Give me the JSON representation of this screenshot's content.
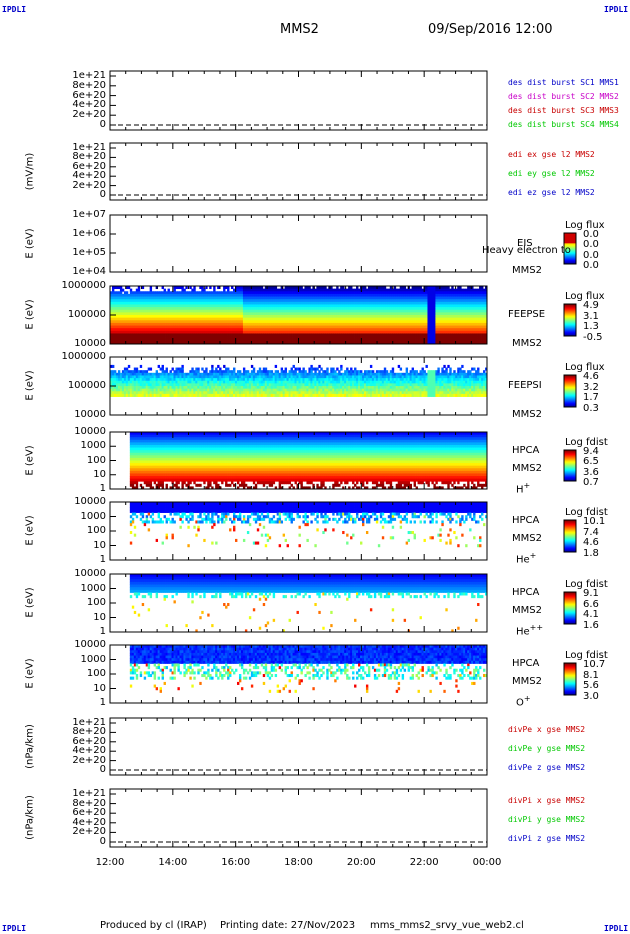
{
  "header": {
    "title": "MMS2",
    "date": "09/Sep/2016 12:00",
    "corner": "IPDLI"
  },
  "footer": {
    "produced": "Produced by cl (IRAP)",
    "printing": "Printing date: 27/Nov/2023",
    "file": "mms_mms2_srvy_vue_web2.cl"
  },
  "x_ticks": [
    "12:00",
    "14:00",
    "16:00",
    "18:00",
    "20:00",
    "22:00",
    "00:00"
  ],
  "chart_data": [
    {
      "type": "line",
      "name": "des dist burst",
      "ylabel": "",
      "yticks": [
        "1e+21",
        "8e+20",
        "6e+20",
        "4e+20",
        "2e+20",
        "0"
      ],
      "ylim": [
        0,
        1e+21
      ],
      "legend": [
        {
          "text": "des dist burst SC1 MMS1",
          "color": "#0000c8"
        },
        {
          "text": "des dist burst SC2 MMS2",
          "color": "#c800c8"
        },
        {
          "text": "des dist burst SC3 MMS3",
          "color": "#c80000"
        },
        {
          "text": "des dist burst SC4 MMS4",
          "color": "#00c800"
        }
      ]
    },
    {
      "type": "line",
      "name": "edi e gse l2",
      "ylabel": "(mV/m)",
      "yticks": [
        "1e+21",
        "8e+20",
        "6e+20",
        "4e+20",
        "2e+20",
        "0"
      ],
      "ylim": [
        0,
        1e+21
      ],
      "legend": [
        {
          "text": "edi ex gse l2 MMS2",
          "color": "#c80000"
        },
        {
          "text": "edi ey gse l2 MMS2",
          "color": "#00c800"
        },
        {
          "text": "edi ez gse l2 MMS2",
          "color": "#0000c8"
        }
      ]
    },
    {
      "type": "heatmap",
      "ylabel": "E (eV)",
      "yticks": [
        "1e+07",
        "1e+06",
        "1e+05",
        "1e+04"
      ],
      "ylim": [
        10000,
        10000000
      ],
      "yscale": "log",
      "instrument": [
        "EIS",
        "MMS2"
      ],
      "extra": "Heavy electron to",
      "cbar_title": "Log flux",
      "cbar_values": [
        "0.0",
        "0.0",
        "0.0",
        "0.0"
      ]
    },
    {
      "type": "heatmap",
      "ylabel": "E (eV)",
      "yticks": [
        "1000000",
        "100000",
        "10000"
      ],
      "ylim": [
        10000,
        1000000
      ],
      "yscale": "log",
      "instrument": [
        "FEEPSE",
        "MMS2"
      ],
      "cbar_title": "Log flux",
      "cbar_values": [
        "4.9",
        "3.1",
        "1.3",
        "-0.5"
      ]
    },
    {
      "type": "heatmap",
      "ylabel": "E (eV)",
      "yticks": [
        "1000000",
        "100000",
        "10000"
      ],
      "ylim": [
        10000,
        1000000
      ],
      "yscale": "log",
      "instrument": [
        "FEEPSI",
        "MMS2"
      ],
      "cbar_title": "Log flux",
      "cbar_values": [
        "4.6",
        "3.2",
        "1.7",
        "0.3"
      ]
    },
    {
      "type": "heatmap",
      "ylabel": "E (eV)",
      "yticks": [
        "10000",
        "1000",
        "100",
        "10",
        "1"
      ],
      "ylim": [
        1,
        30000
      ],
      "yscale": "log",
      "instrument": [
        "HPCA",
        "MMS2",
        "H+"
      ],
      "cbar_title": "Log fdist",
      "cbar_values": [
        "9.4",
        "6.5",
        "3.6",
        "0.7"
      ]
    },
    {
      "type": "heatmap",
      "ylabel": "E (eV)",
      "yticks": [
        "10000",
        "1000",
        "100",
        "10",
        "1"
      ],
      "ylim": [
        1,
        30000
      ],
      "yscale": "log",
      "instrument": [
        "HPCA",
        "MMS2",
        "He+"
      ],
      "cbar_title": "Log fdist",
      "cbar_values": [
        "10.1",
        "7.4",
        "4.6",
        "1.8"
      ]
    },
    {
      "type": "heatmap",
      "ylabel": "E (eV)",
      "yticks": [
        "10000",
        "1000",
        "100",
        "10",
        "1"
      ],
      "ylim": [
        1,
        30000
      ],
      "yscale": "log",
      "instrument": [
        "HPCA",
        "MMS2",
        "He++"
      ],
      "cbar_title": "Log fdist",
      "cbar_values": [
        "9.1",
        "6.6",
        "4.1",
        "1.6"
      ]
    },
    {
      "type": "heatmap",
      "ylabel": "E (eV)",
      "yticks": [
        "10000",
        "1000",
        "100",
        "10",
        "1"
      ],
      "ylim": [
        1,
        30000
      ],
      "yscale": "log",
      "instrument": [
        "HPCA",
        "MMS2",
        "O+"
      ],
      "cbar_title": "Log fdist",
      "cbar_values": [
        "10.7",
        "8.1",
        "5.6",
        "3.0"
      ]
    },
    {
      "type": "line",
      "name": "divPe",
      "ylabel": "(nPa/km)",
      "yticks": [
        "1e+21",
        "8e+20",
        "6e+20",
        "4e+20",
        "2e+20",
        "0"
      ],
      "ylim": [
        0,
        1e+21
      ],
      "legend": [
        {
          "text": "divPe x gse MMS2",
          "color": "#c80000"
        },
        {
          "text": "divPe y gse MMS2",
          "color": "#00c800"
        },
        {
          "text": "divPe z gse MMS2",
          "color": "#0000c8"
        }
      ]
    },
    {
      "type": "line",
      "name": "divPi",
      "ylabel": "(nPa/km)",
      "yticks": [
        "1e+21",
        "8e+20",
        "6e+20",
        "4e+20",
        "2e+20",
        "0"
      ],
      "ylim": [
        0,
        1e+21
      ],
      "legend": [
        {
          "text": "divPi x gse MMS2",
          "color": "#c80000"
        },
        {
          "text": "divPi y gse MMS2",
          "color": "#00c800"
        },
        {
          "text": "divPi z gse MMS2",
          "color": "#0000c8"
        }
      ]
    }
  ]
}
